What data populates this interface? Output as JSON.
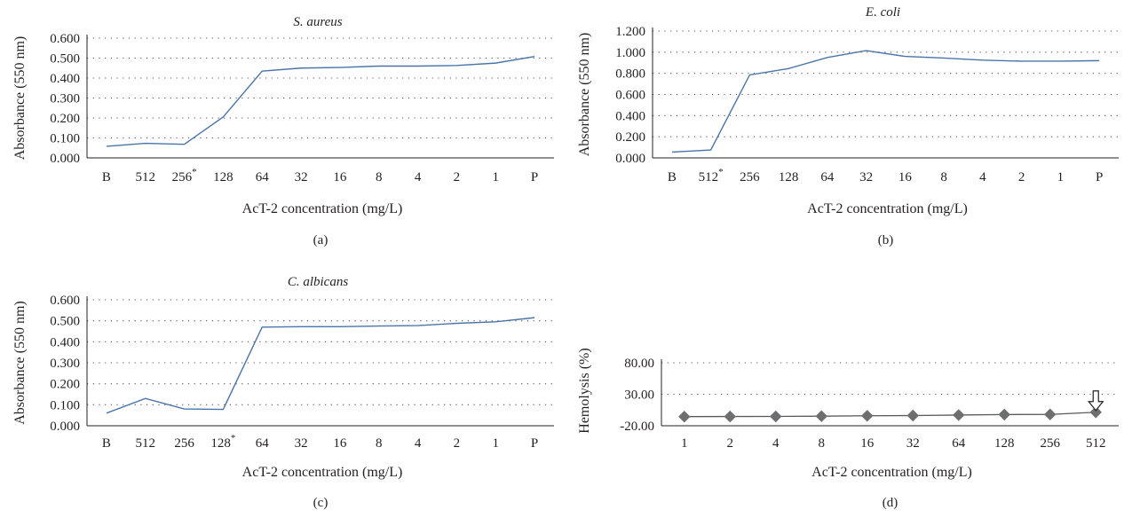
{
  "chart_data": [
    {
      "panel": "(a)",
      "type": "line",
      "title": "S. aureus",
      "xlabel": "AcT-2 concentration (mg/L)",
      "ylabel": "Absorbance (550 nm)",
      "categories": [
        "B",
        "512",
        "256*",
        "128",
        "64",
        "32",
        "16",
        "8",
        "4",
        "2",
        "1",
        "P"
      ],
      "values": [
        0.058,
        0.073,
        0.068,
        0.205,
        0.435,
        0.45,
        0.453,
        0.46,
        0.46,
        0.463,
        0.475,
        0.508
      ],
      "yticks": [
        "0.000",
        "0.100",
        "0.200",
        "0.300",
        "0.400",
        "0.500",
        "0.600"
      ],
      "ylim": [
        0,
        0.6
      ],
      "grid": "dotted horizontal"
    },
    {
      "panel": "(b)",
      "type": "line",
      "title": "E. coli",
      "xlabel": "AcT-2 concentration (mg/L)",
      "ylabel": "Absorbance (550 nm)",
      "categories": [
        "B",
        "512*",
        "256",
        "128",
        "64",
        "32",
        "16",
        "8",
        "4",
        "2",
        "1",
        "P"
      ],
      "values": [
        0.055,
        0.075,
        0.785,
        0.845,
        0.95,
        1.015,
        0.96,
        0.945,
        0.925,
        0.915,
        0.915,
        0.92
      ],
      "yticks": [
        "0.000",
        "0.200",
        "0.400",
        "0.600",
        "0.800",
        "1.000",
        "1.200"
      ],
      "ylim": [
        0,
        1.2
      ],
      "grid": "dotted horizontal"
    },
    {
      "panel": "(c)",
      "type": "line",
      "title": "C. albicans",
      "xlabel": "AcT-2 concentration (mg/L)",
      "ylabel": "Absorbance (550 nm)",
      "categories": [
        "B",
        "512",
        "256",
        "128*",
        "64",
        "32",
        "16",
        "8",
        "4",
        "2",
        "1",
        "P"
      ],
      "values": [
        0.06,
        0.13,
        0.08,
        0.078,
        0.47,
        0.472,
        0.472,
        0.475,
        0.477,
        0.488,
        0.495,
        0.515
      ],
      "yticks": [
        "0.000",
        "0.100",
        "0.200",
        "0.300",
        "0.400",
        "0.500",
        "0.600"
      ],
      "ylim": [
        0,
        0.6
      ],
      "grid": "dotted horizontal"
    },
    {
      "panel": "(d)",
      "type": "line",
      "title": "",
      "xlabel": "AcT-2 concentration (mg/L)",
      "ylabel": "Hemolysis (%)",
      "categories": [
        "1",
        "2",
        "4",
        "8",
        "16",
        "32",
        "64",
        "128",
        "256",
        "512"
      ],
      "values": [
        -5.5,
        -5.3,
        -5.2,
        -4.8,
        -4.2,
        -3.8,
        -3.0,
        -2.2,
        -2.0,
        1.5
      ],
      "yticks": [
        "-20.00",
        "30.00",
        "80.00"
      ],
      "ylim": [
        -20,
        80
      ],
      "marker": "diamond",
      "annotation": "arrow-down at 512",
      "grid": "dotted horizontal"
    }
  ],
  "colors": {
    "line_blue": "#4a74a8",
    "marker_gray": "#6d6e70",
    "line_gray": "#58595b",
    "axis": "#231f20"
  }
}
